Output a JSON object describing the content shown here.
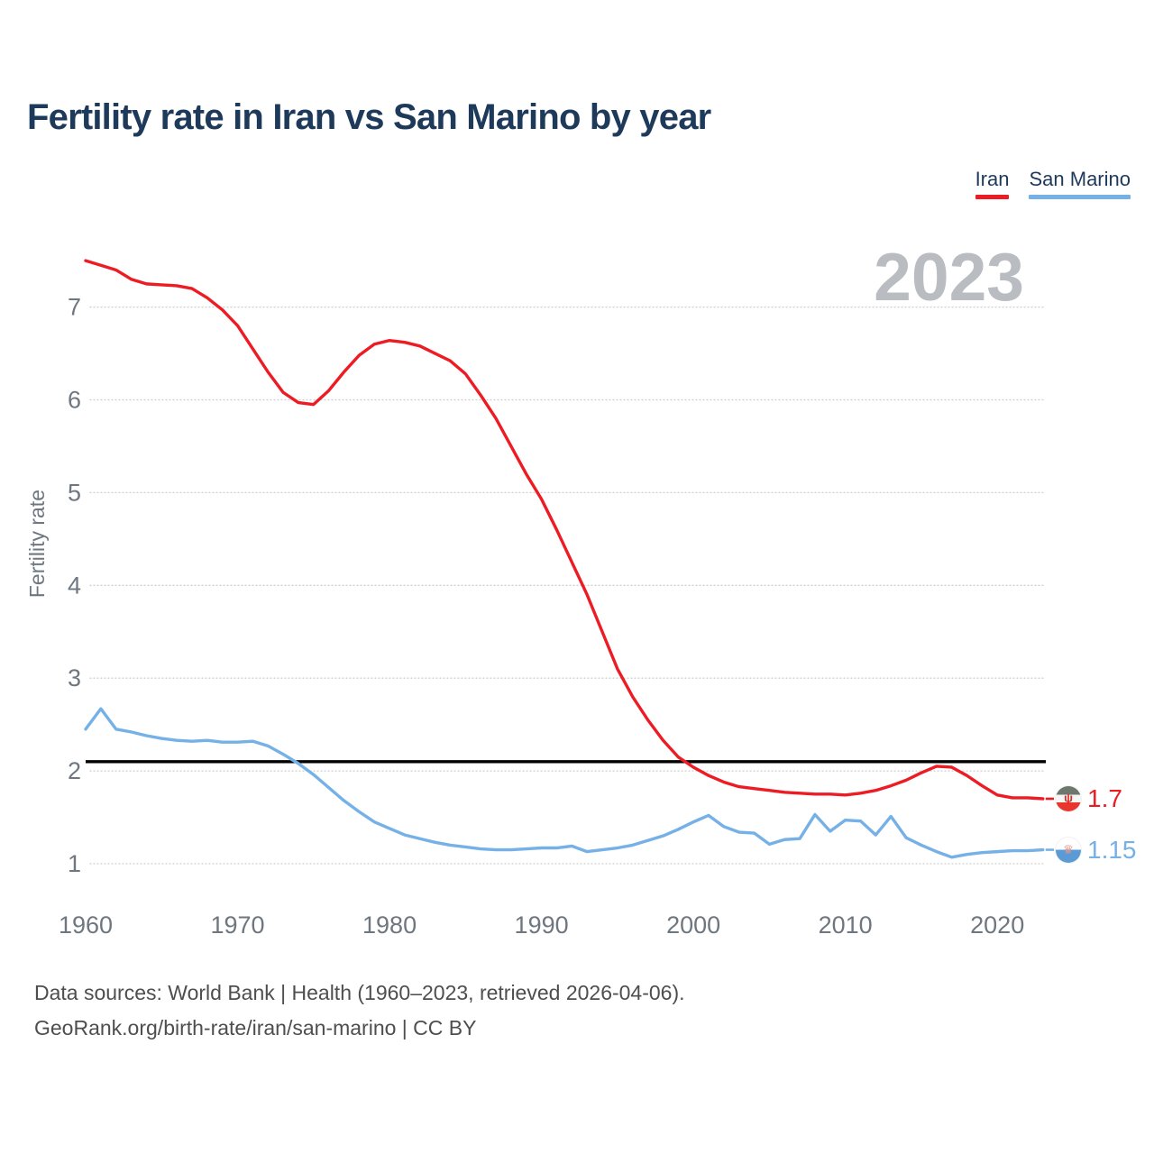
{
  "title": "Fertility rate in Iran vs San Marino by year",
  "legend": {
    "items": [
      {
        "label": "Iran",
        "color": "#ed1c24"
      },
      {
        "label": "San Marino",
        "color": "#75b1e7"
      }
    ]
  },
  "watermark": "2023",
  "y_axis_label": "Fertility rate",
  "end_labels": {
    "iran": {
      "value": "1.7",
      "flag": "iran-flag"
    },
    "san_marino": {
      "value": "1.15",
      "flag": "san-marino-flag"
    }
  },
  "footer": {
    "line1": "Data sources: World Bank | Health (1960–2023, retrieved 2026-04-06).",
    "line2": "GeoRank.org/birth-rate/iran/san-marino | CC BY"
  },
  "chart_data": {
    "type": "line",
    "title": "Fertility rate in Iran vs San Marino by year",
    "xlabel": "",
    "ylabel": "Fertility rate",
    "x_ticks": [
      1960,
      1970,
      1980,
      1990,
      2000,
      2010,
      2020
    ],
    "y_ticks": [
      1,
      2,
      3,
      4,
      5,
      6,
      7
    ],
    "xlim": [
      1960,
      2023
    ],
    "ylim": [
      0.5,
      7.9
    ],
    "grid": "horizontal-dotted",
    "legend_position": "top-right",
    "reference_line": 2.1,
    "reference_line_color": "#000000",
    "watermark": "2023",
    "years": [
      1960,
      1961,
      1962,
      1963,
      1964,
      1965,
      1966,
      1967,
      1968,
      1969,
      1970,
      1971,
      1972,
      1973,
      1974,
      1975,
      1976,
      1977,
      1978,
      1979,
      1980,
      1981,
      1982,
      1983,
      1984,
      1985,
      1986,
      1987,
      1988,
      1989,
      1990,
      1991,
      1992,
      1993,
      1994,
      1995,
      1996,
      1997,
      1998,
      1999,
      2000,
      2001,
      2002,
      2003,
      2004,
      2005,
      2006,
      2007,
      2008,
      2009,
      2010,
      2011,
      2012,
      2013,
      2014,
      2015,
      2016,
      2017,
      2018,
      2019,
      2020,
      2021,
      2022,
      2023
    ],
    "series": [
      {
        "name": "Iran",
        "color": "#ed1c24",
        "end_value_label": "1.7",
        "values": [
          7.5,
          7.45,
          7.4,
          7.3,
          7.25,
          7.24,
          7.23,
          7.2,
          7.1,
          6.97,
          6.8,
          6.55,
          6.3,
          6.08,
          5.97,
          5.95,
          6.1,
          6.3,
          6.48,
          6.6,
          6.64,
          6.62,
          6.58,
          6.5,
          6.42,
          6.28,
          6.05,
          5.8,
          5.5,
          5.2,
          4.93,
          4.6,
          4.25,
          3.9,
          3.5,
          3.1,
          2.8,
          2.55,
          2.33,
          2.15,
          2.04,
          1.95,
          1.88,
          1.83,
          1.81,
          1.79,
          1.77,
          1.76,
          1.75,
          1.75,
          1.74,
          1.76,
          1.79,
          1.84,
          1.9,
          1.98,
          2.05,
          2.04,
          1.95,
          1.84,
          1.74,
          1.71,
          1.71,
          1.7
        ]
      },
      {
        "name": "San Marino",
        "color": "#75b1e7",
        "end_value_label": "1.15",
        "values": [
          2.45,
          2.67,
          2.45,
          2.42,
          2.38,
          2.35,
          2.33,
          2.32,
          2.33,
          2.31,
          2.31,
          2.32,
          2.27,
          2.18,
          2.08,
          1.96,
          1.82,
          1.68,
          1.56,
          1.45,
          1.38,
          1.31,
          1.27,
          1.23,
          1.2,
          1.18,
          1.16,
          1.15,
          1.15,
          1.16,
          1.17,
          1.17,
          1.19,
          1.13,
          1.15,
          1.17,
          1.2,
          1.25,
          1.3,
          1.37,
          1.45,
          1.52,
          1.4,
          1.34,
          1.33,
          1.21,
          1.26,
          1.27,
          1.53,
          1.35,
          1.47,
          1.46,
          1.31,
          1.51,
          1.28,
          1.2,
          1.13,
          1.07,
          1.1,
          1.12,
          1.13,
          1.14,
          1.14,
          1.15
        ]
      }
    ]
  }
}
